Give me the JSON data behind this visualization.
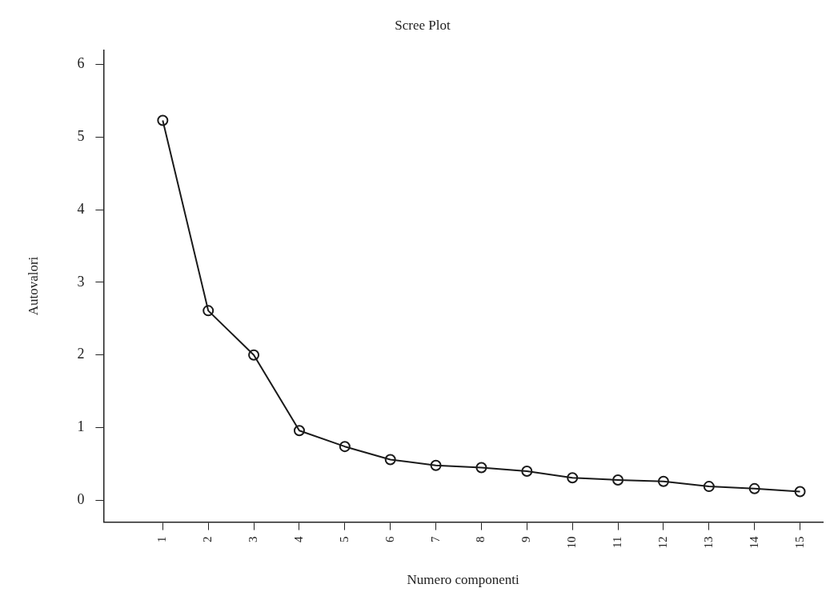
{
  "chart_data": {
    "type": "line",
    "title": "Scree Plot",
    "xlabel": "Numero componenti",
    "ylabel": "Autovalori",
    "x": [
      1,
      2,
      3,
      4,
      5,
      6,
      7,
      8,
      9,
      10,
      11,
      12,
      13,
      14,
      15
    ],
    "series": [
      {
        "color": "#1a1a1a",
        "values": [
          5.23,
          2.61,
          2.0,
          0.96,
          0.74,
          0.56,
          0.48,
          0.45,
          0.4,
          0.31,
          0.28,
          0.26,
          0.19,
          0.16,
          0.12
        ]
      }
    ],
    "xlim": [
      -0.3,
      15.5
    ],
    "xticks": [
      1,
      2,
      3,
      4,
      5,
      6,
      7,
      8,
      9,
      10,
      11,
      12,
      13,
      14,
      15
    ],
    "ylim": [
      -0.3,
      6.2
    ],
    "yticks": [
      0,
      1,
      2,
      3,
      4,
      5,
      6
    ],
    "marker": "circle",
    "line_style": "solid",
    "grid": false,
    "legend": false
  }
}
